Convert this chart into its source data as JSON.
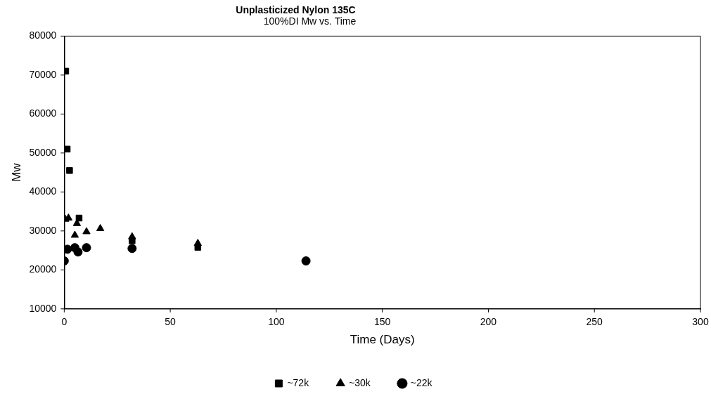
{
  "chart_data": {
    "type": "scatter",
    "title": "Unplasticized Nylon 135C",
    "subtitle": "100%DI Mw vs. Time",
    "xlabel": "Time (Days)",
    "ylabel": "Mw",
    "xlim": [
      0,
      300
    ],
    "xticks": [
      0,
      50,
      100,
      150,
      200,
      250,
      300
    ],
    "ylim": [
      10000,
      80000
    ],
    "yticks": [
      10000,
      20000,
      30000,
      40000,
      50000,
      60000,
      70000,
      80000
    ],
    "grid": false,
    "legend": "bottom",
    "series": [
      {
        "name": "~72k",
        "color": "#000000",
        "marker": "square",
        "x": [
          0.7,
          1.4,
          2.5,
          7,
          32,
          63
        ],
        "values": [
          71000,
          51000,
          45500,
          33300,
          27500,
          25800
        ]
      },
      {
        "name": "~30k",
        "color": "#000000",
        "marker": "triangle",
        "x": [
          0.5,
          2,
          5,
          6,
          10.5,
          17,
          32,
          63
        ],
        "values": [
          33000,
          33300,
          28900,
          31900,
          29800,
          30600,
          28500,
          26800
        ]
      },
      {
        "name": "~22k",
        "color": "#000000",
        "marker": "circle",
        "x": [
          0,
          1.5,
          5,
          6.5,
          10.5,
          32,
          114
        ],
        "values": [
          22300,
          25300,
          25700,
          24600,
          25700,
          25500,
          22300
        ]
      }
    ]
  }
}
